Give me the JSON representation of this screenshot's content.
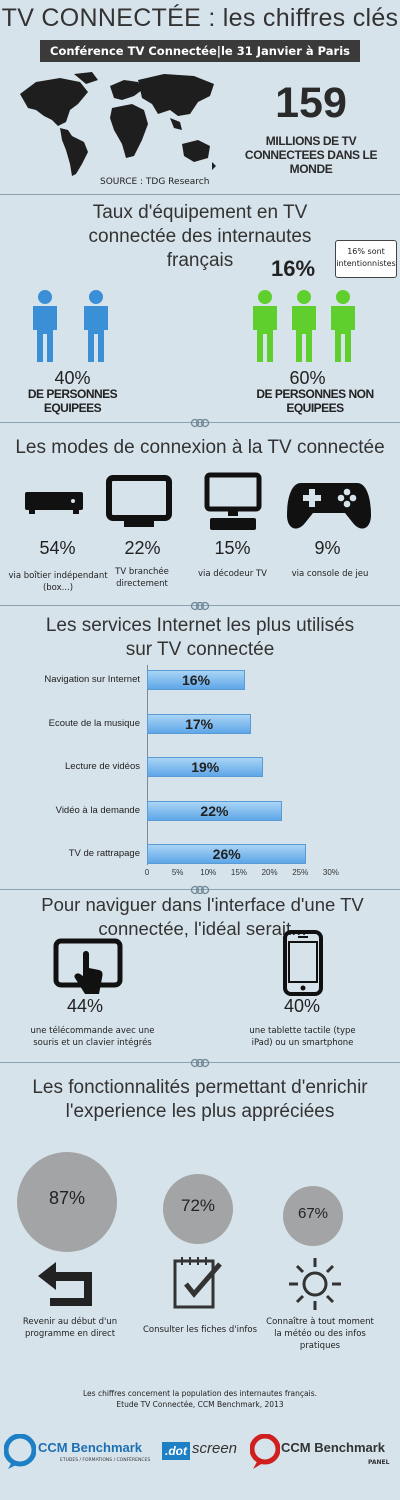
{
  "header": {
    "title": "TV CONNECTÉE : les chiffres clés",
    "banner": "Conférence TV Connectée|le 31 Janvier à Paris",
    "big_number": "159",
    "big_caption": "MILLIONS DE TV CONNECTEES DANS LE MONDE",
    "source": "SOURCE : TDG Research"
  },
  "equipment": {
    "title": "Taux d'équipement en TV connectée des internautes français",
    "equipped_pct": "40%",
    "equipped_label": "DE PERSONNES EQUIPEES",
    "not_equipped_pct": "60%",
    "not_equipped_label": "DE PERSONNES NON EQUIPEES",
    "intentional_pct": "16%",
    "bubble": "16% sont intentionnistes",
    "colors": {
      "equipped": "#3a8fd6",
      "not_equipped": "#5fcf2d"
    }
  },
  "modes": {
    "title": "Les modes de connexion à la TV connectée",
    "items": [
      {
        "icon": "set-top-box-icon",
        "pct": "54%",
        "label": "via boîtier indépendant (box...)"
      },
      {
        "icon": "tv-icon",
        "pct": "22%",
        "label": "TV branchée directement"
      },
      {
        "icon": "decoder-icon",
        "pct": "15%",
        "label": "via décodeur TV"
      },
      {
        "icon": "gamepad-icon",
        "pct": "9%",
        "label": "via console de jeu"
      }
    ]
  },
  "services": {
    "title": "Les services Internet les plus utilisés sur TV connectée",
    "chart_data": {
      "type": "bar",
      "orientation": "horizontal",
      "categories": [
        "Navigation sur Internet",
        "Ecoute de la musique",
        "Lecture de vidéos",
        "Vidéo à la demande",
        "TV de rattrapage"
      ],
      "values": [
        16,
        17,
        19,
        22,
        26
      ],
      "value_labels": [
        "16%",
        "17%",
        "19%",
        "22%",
        "26%"
      ],
      "xlim": [
        0,
        30
      ],
      "ticks": [
        "0",
        "5%",
        "10%",
        "15%",
        "20%",
        "25%",
        "30%"
      ]
    }
  },
  "navigation": {
    "title": "Pour naviguer dans l'interface d'une TV connectée, l'idéal serait...",
    "items": [
      {
        "icon": "touch-remote-icon",
        "pct": "44%",
        "label": "une télécommande avec une souris et un clavier intégrés"
      },
      {
        "icon": "smartphone-icon",
        "pct": "40%",
        "label": "une tablette tactile (type iPad) ou un smartphone"
      }
    ]
  },
  "features": {
    "title": "Les fonctionnalités permettant d'enrichir l'experience les plus appréciées",
    "items": [
      {
        "icon": "back-arrow-icon",
        "pct": "87%",
        "label": "Revenir au début d'un programme en direct"
      },
      {
        "icon": "checklist-icon",
        "pct": "72%",
        "label": "Consulter les fiches d'infos"
      },
      {
        "icon": "sun-icon",
        "pct": "67%",
        "label": "Connaître à tout moment la météo ou des infos pratiques"
      }
    ]
  },
  "footer": {
    "note": "Les chiffres concernent la population des internautes français.",
    "credit": "Etude TV Connectée, CCM Benchmark, 2013",
    "logo1": "CCM Benchmark",
    "logo1_sub": "ETUDES / FORMATIONS / CONFÉRENCES",
    "logo2_a": ".dot",
    "logo2_b": "screen",
    "logo3": "CCM Benchmark",
    "logo3_sub": "PANEL"
  }
}
